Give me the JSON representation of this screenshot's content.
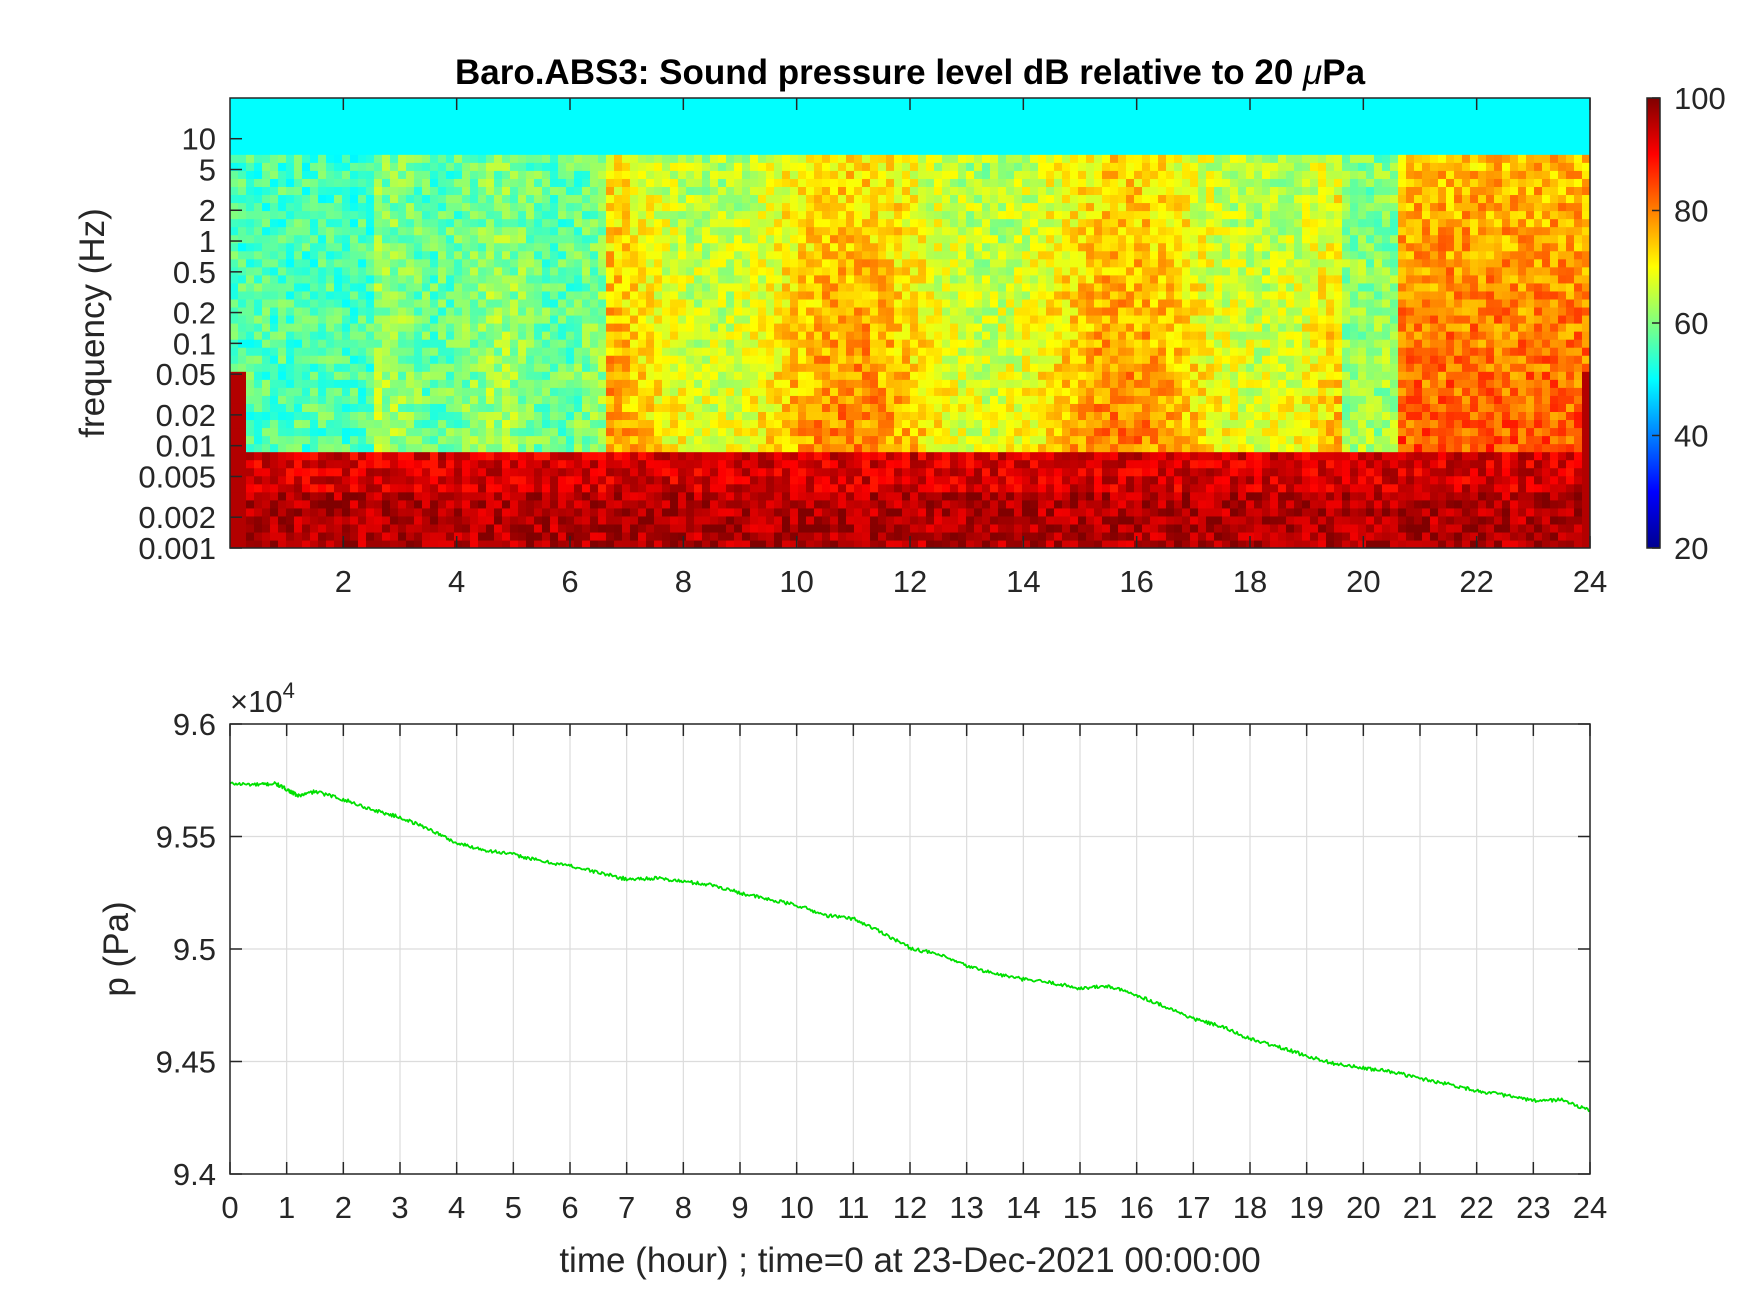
{
  "chart_data": [
    {
      "type": "heatmap",
      "title_prefix": "Baro.ABS3: Sound pressure level dB relative to 20 ",
      "title_mu": "μ",
      "title_suffix": "Pa",
      "ylabel": "frequency (Hz)",
      "xlabel": "",
      "xlim": [
        0,
        24
      ],
      "ylim": [
        0.001,
        25
      ],
      "yscale": "log",
      "x_ticks": [
        2,
        4,
        6,
        8,
        10,
        12,
        14,
        16,
        18,
        20,
        22,
        24
      ],
      "y_ticks": [
        0.001,
        0.002,
        0.005,
        0.01,
        0.02,
        0.05,
        0.1,
        0.2,
        0.5,
        1,
        2,
        5,
        10
      ],
      "y_tick_labels": [
        "0.001",
        "0.002",
        "0.005",
        "0.01",
        "0.02",
        "0.05",
        "0.1",
        "0.2",
        "0.5",
        "1",
        "2",
        "5",
        "10"
      ],
      "colormap": "jet",
      "colorbar": {
        "limits": [
          20,
          100
        ],
        "ticks": [
          20,
          40,
          60,
          80,
          100
        ]
      },
      "description_bands": [
        {
          "freq_range": [
            5,
            25
          ],
          "level_db": 52
        },
        {
          "freq_range": [
            0.01,
            5
          ],
          "level_db_range": [
            45,
            85
          ]
        },
        {
          "freq_range": [
            0.001,
            0.01
          ],
          "level_db_range": [
            85,
            100
          ]
        }
      ]
    },
    {
      "type": "line",
      "ylabel": "p (Pa)",
      "xlabel": "time (hour) ; time=0 at 23-Dec-2021 00:00:00",
      "xlim": [
        0,
        24
      ],
      "ylim": [
        94000,
        96000
      ],
      "y_exponent_label": "×10",
      "y_exponent": "4",
      "x_ticks": [
        0,
        1,
        2,
        3,
        4,
        5,
        6,
        7,
        8,
        9,
        10,
        11,
        12,
        13,
        14,
        15,
        16,
        17,
        18,
        19,
        20,
        21,
        22,
        23,
        24
      ],
      "y_ticks": [
        94000,
        94500,
        95000,
        95500,
        96000
      ],
      "y_tick_labels": [
        "9.4",
        "9.45",
        "9.5",
        "9.55",
        "9.6"
      ],
      "grid": true,
      "line_color": "#00e000",
      "series": [
        {
          "x": [
            0,
            0.5,
            0.8,
            1.0,
            1.2,
            1.5,
            2,
            2.5,
            3,
            3.5,
            4,
            4.5,
            5,
            5.5,
            6,
            6.5,
            7,
            7.5,
            8,
            8.5,
            9,
            9.5,
            10,
            10.5,
            11,
            11.5,
            12,
            12.5,
            13,
            13.5,
            14,
            14.5,
            15,
            15.5,
            16,
            16.5,
            17,
            17.5,
            18,
            18.5,
            19,
            19.5,
            20,
            20.5,
            21,
            21.5,
            22,
            22.5,
            23,
            23.5,
            24
          ],
          "y": [
            95735,
            95730,
            95735,
            95710,
            95680,
            95700,
            95665,
            95620,
            95585,
            95535,
            95470,
            95440,
            95420,
            95390,
            95370,
            95340,
            95310,
            95315,
            95300,
            95285,
            95250,
            95220,
            95195,
            95150,
            95135,
            95075,
            95005,
            94975,
            94925,
            94890,
            94865,
            94850,
            94825,
            94835,
            94795,
            94745,
            94690,
            94655,
            94600,
            94565,
            94525,
            94490,
            94470,
            94455,
            94425,
            94400,
            94370,
            94350,
            94325,
            94330,
            94280
          ]
        }
      ]
    }
  ]
}
